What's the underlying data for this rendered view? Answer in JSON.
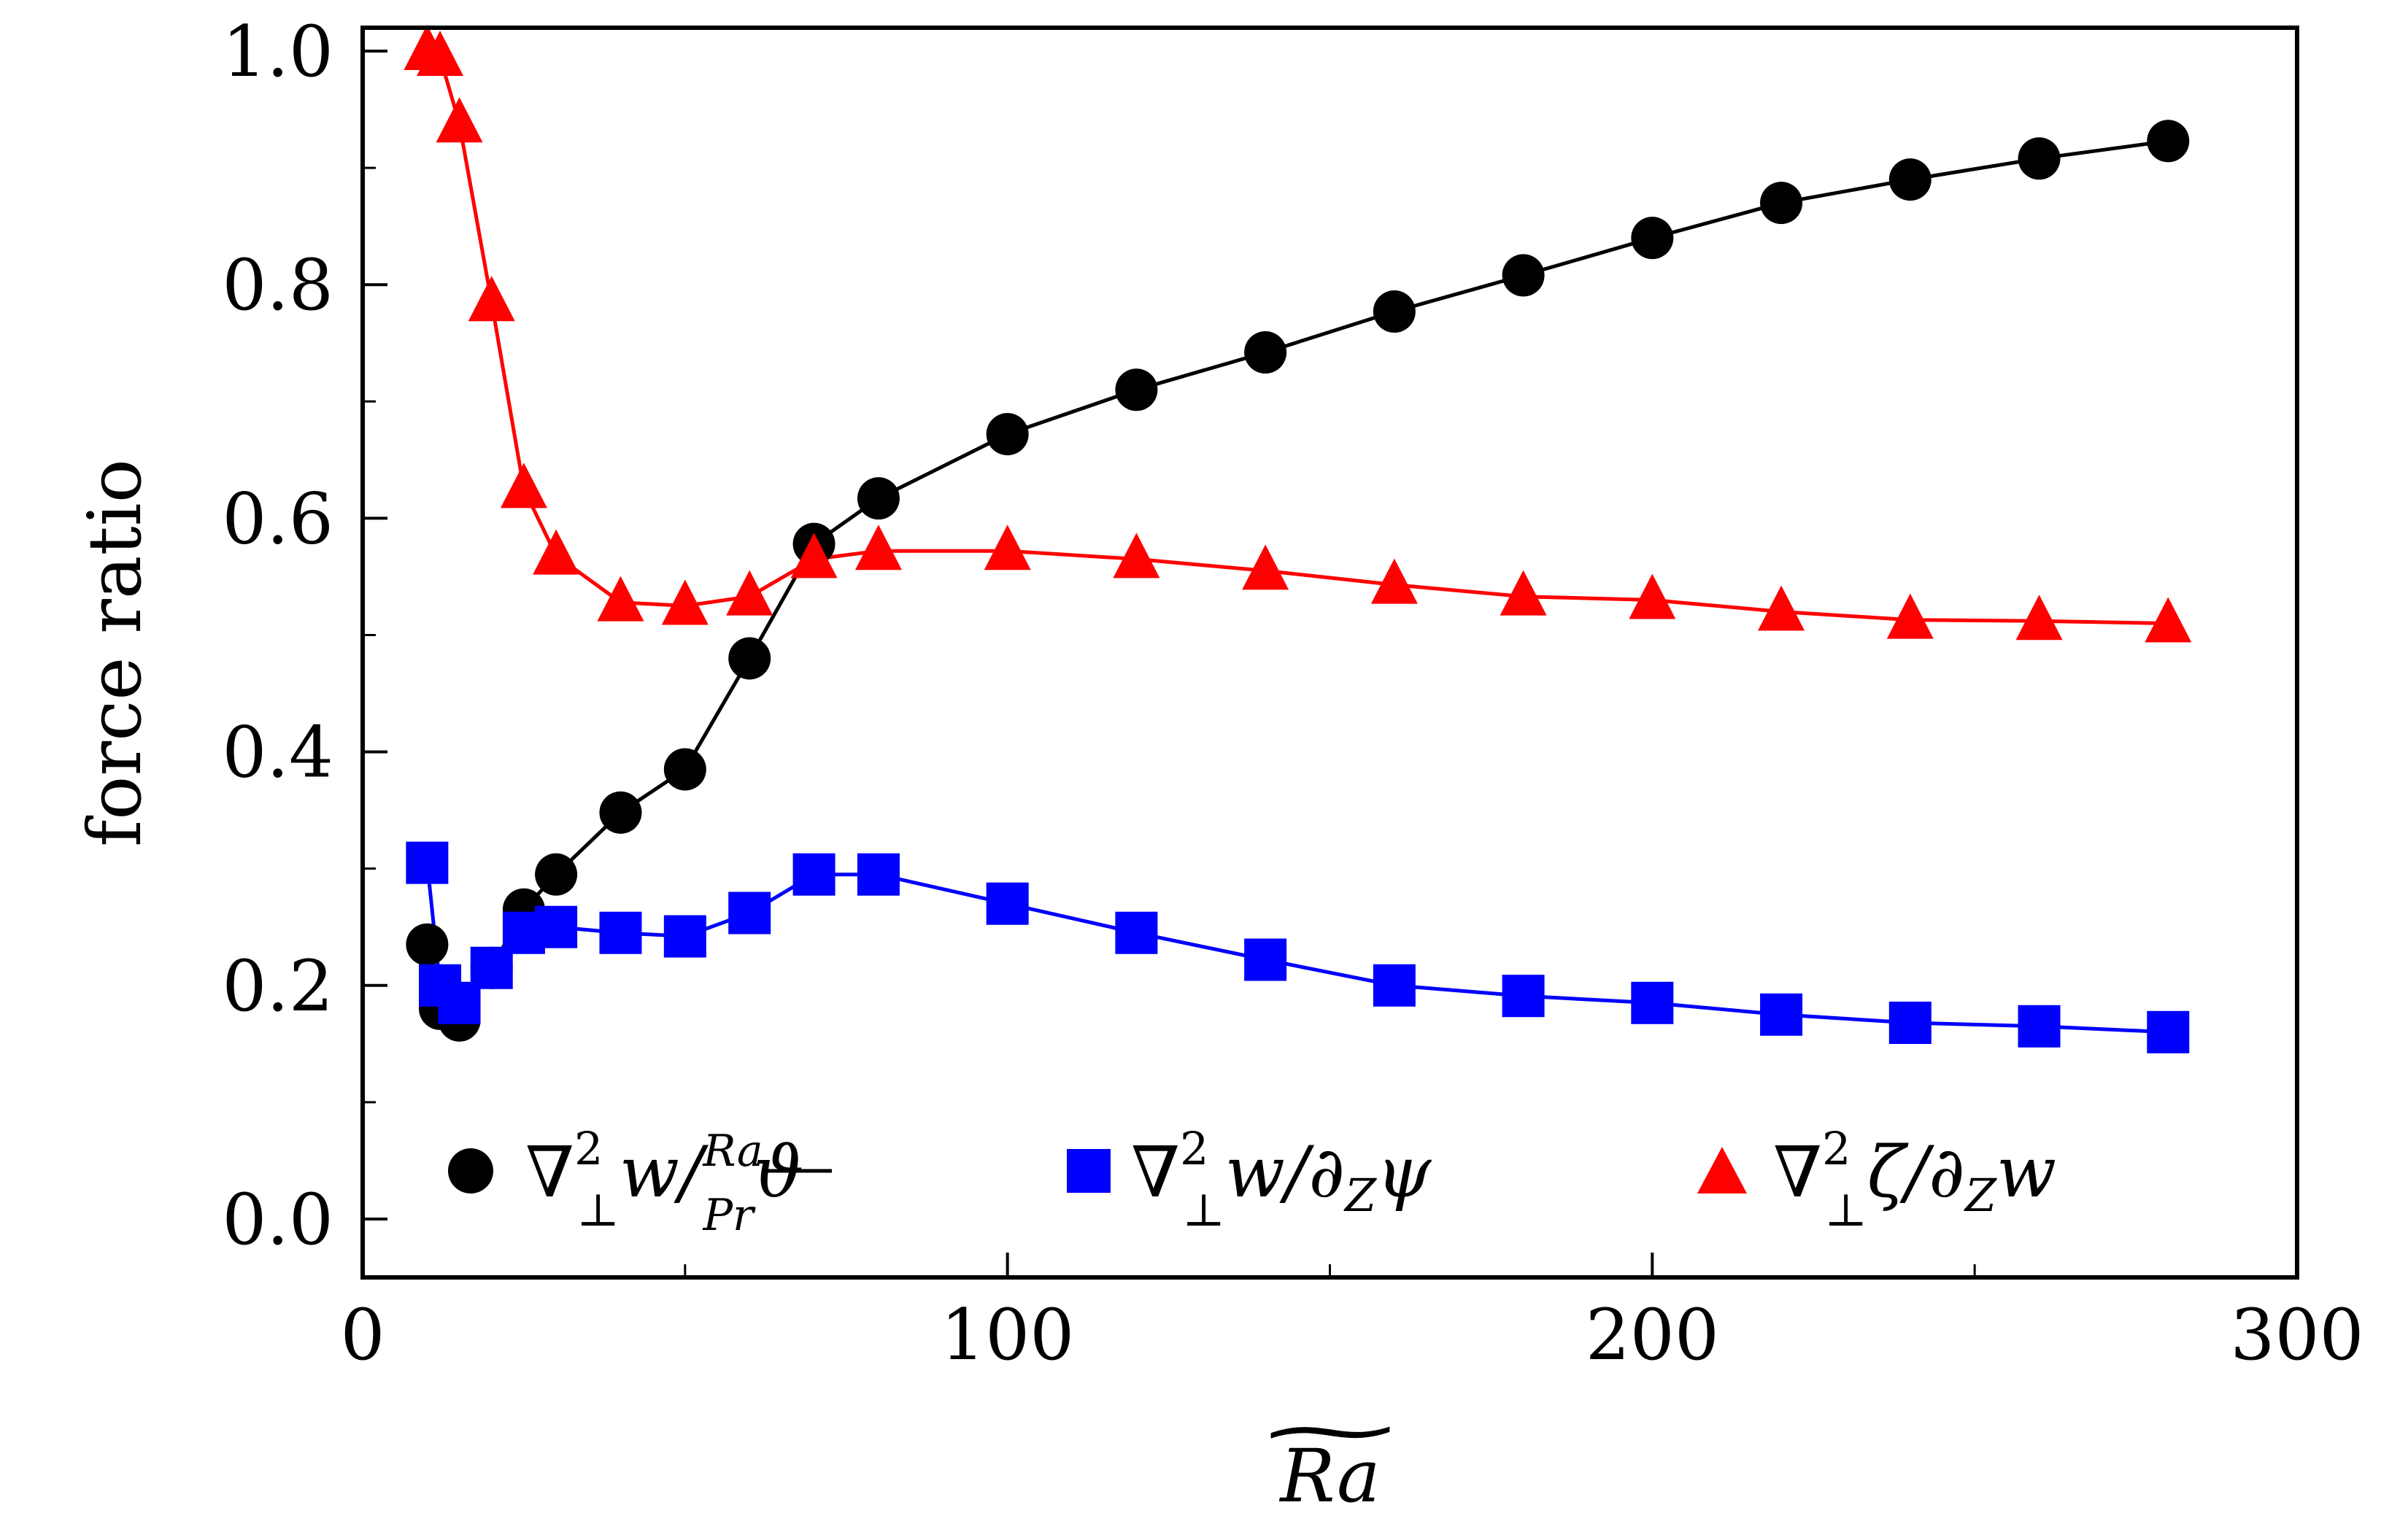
{
  "chart_data": {
    "type": "line",
    "title": "",
    "xlabel": "Ra",
    "xlabel_accent": "~",
    "ylabel": "force ratio",
    "xlim": [
      0,
      300
    ],
    "ylim": [
      -0.05,
      1.02
    ],
    "xticks": [
      0,
      100,
      200,
      300
    ],
    "xtick_labels": [
      "0",
      "100",
      "200",
      "300"
    ],
    "xminor": [
      50,
      150,
      250
    ],
    "yticks": [
      0.0,
      0.2,
      0.4,
      0.6,
      0.8,
      1.0
    ],
    "ytick_labels": [
      "0.0",
      "0.2",
      "0.4",
      "0.6",
      "0.8",
      "1.0"
    ],
    "yminor": [
      0.1,
      0.3,
      0.5,
      0.7,
      0.9
    ],
    "grid": false,
    "legend_position": "bottom",
    "series": [
      {
        "name": "∇⊥² w / (Ra/Pr) ϑ",
        "legend": {
          "op": "∇",
          "sup": "2",
          "sub": "⊥",
          "a": "w/",
          "num": "Ra",
          "den": "Pr",
          "b": "ϑ"
        },
        "color": "#000000",
        "marker": "circle",
        "x": [
          10,
          12,
          15,
          20,
          25,
          30,
          40,
          50,
          60,
          70,
          80,
          100,
          120,
          140,
          160,
          180,
          200,
          220,
          240,
          260,
          280
        ],
        "y": [
          0.235,
          0.18,
          0.17,
          0.215,
          0.265,
          0.295,
          0.348,
          0.385,
          0.48,
          0.578,
          0.617,
          0.672,
          0.71,
          0.742,
          0.777,
          0.808,
          0.84,
          0.87,
          0.89,
          0.908,
          0.923
        ]
      },
      {
        "name": "∇⊥² w / ∂Z ψ",
        "legend": {
          "op": "∇",
          "sup": "2",
          "sub": "⊥",
          "a": "w/∂",
          "zsub": "Z",
          "b": "ψ"
        },
        "color": "#0000ff",
        "marker": "square",
        "x": [
          10,
          12,
          15,
          20,
          25,
          30,
          40,
          50,
          60,
          70,
          80,
          100,
          120,
          140,
          160,
          180,
          200,
          220,
          240,
          260,
          280
        ],
        "y": [
          0.305,
          0.2,
          0.185,
          0.215,
          0.245,
          0.25,
          0.245,
          0.242,
          0.262,
          0.295,
          0.295,
          0.27,
          0.245,
          0.222,
          0.2,
          0.191,
          0.185,
          0.175,
          0.168,
          0.165,
          0.16
        ]
      },
      {
        "name": "∇⊥² ζ / ∂Z w",
        "legend": {
          "op": "∇",
          "sup": "2",
          "sub": "⊥",
          "a": "ζ/∂",
          "zsub": "Z",
          "b": "w"
        },
        "color": "#ff0000",
        "marker": "triangle",
        "x": [
          10,
          12,
          15,
          20,
          25,
          30,
          40,
          50,
          60,
          70,
          80,
          100,
          120,
          140,
          160,
          180,
          200,
          220,
          240,
          260,
          280
        ],
        "y": [
          1.0,
          0.995,
          0.938,
          0.785,
          0.625,
          0.568,
          0.528,
          0.525,
          0.533,
          0.565,
          0.572,
          0.572,
          0.565,
          0.555,
          0.543,
          0.533,
          0.53,
          0.52,
          0.513,
          0.512,
          0.51
        ]
      }
    ]
  }
}
